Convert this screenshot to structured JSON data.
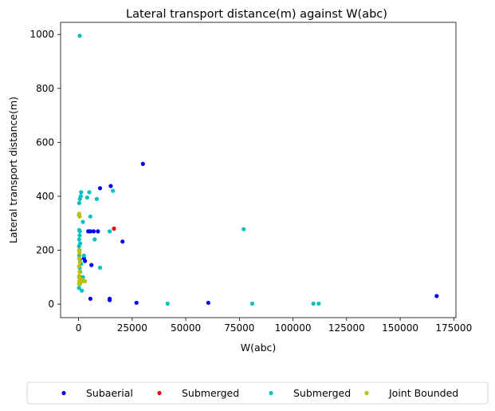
{
  "chart_data": {
    "type": "scatter",
    "title": "Lateral transport distance(m) against W(abc)",
    "xlabel": "W(abc)",
    "ylabel": "Lateral transport distance(m)",
    "xlim": [
      -8400,
      176000
    ],
    "ylim": [
      -50,
      1045
    ],
    "xticks": [
      0,
      25000,
      50000,
      75000,
      100000,
      125000,
      150000,
      175000
    ],
    "xtick_labels": [
      "0",
      "25000",
      "50000",
      "75000",
      "100000",
      "125000",
      "150000",
      "175000"
    ],
    "yticks": [
      0,
      200,
      400,
      600,
      800,
      1000
    ],
    "ytick_labels": [
      "0",
      "200",
      "400",
      "600",
      "800",
      "1000"
    ],
    "grid": false,
    "legend_position": "bottom-center, outside plot area, 4 columns",
    "series": [
      {
        "name": "Subaerial",
        "color": "#0000ff",
        "points": [
          [
            30000,
            520
          ],
          [
            15000,
            438
          ],
          [
            10000,
            430
          ],
          [
            2500,
            170
          ],
          [
            3000,
            160
          ],
          [
            4500,
            270
          ],
          [
            5500,
            270
          ],
          [
            7000,
            270
          ],
          [
            9000,
            270
          ],
          [
            20500,
            232
          ],
          [
            6000,
            145
          ],
          [
            2000,
            100
          ],
          [
            5500,
            20
          ],
          [
            14500,
            20
          ],
          [
            14500,
            15
          ],
          [
            27000,
            5
          ],
          [
            60500,
            5
          ],
          [
            167000,
            30
          ]
        ]
      },
      {
        "name": "Submerged",
        "color": "#ff0000",
        "points": [
          [
            16500,
            280
          ]
        ]
      },
      {
        "name": "Submerged",
        "color": "#00bfbf",
        "points": [
          [
            500,
            995
          ],
          [
            1200,
            415
          ],
          [
            1000,
            400
          ],
          [
            600,
            390
          ],
          [
            300,
            375
          ],
          [
            5000,
            415
          ],
          [
            4000,
            395
          ],
          [
            8500,
            390
          ],
          [
            16000,
            420
          ],
          [
            5500,
            325
          ],
          [
            200,
            330
          ],
          [
            2000,
            305
          ],
          [
            300,
            275
          ],
          [
            600,
            270
          ],
          [
            500,
            255
          ],
          [
            300,
            240
          ],
          [
            700,
            225
          ],
          [
            200,
            215
          ],
          [
            400,
            200
          ],
          [
            300,
            180
          ],
          [
            700,
            165
          ],
          [
            1200,
            150
          ],
          [
            500,
            135
          ],
          [
            800,
            120
          ],
          [
            300,
            100
          ],
          [
            1000,
            90
          ],
          [
            500,
            75
          ],
          [
            200,
            60
          ],
          [
            1500,
            50
          ],
          [
            2000,
            100
          ],
          [
            7500,
            240
          ],
          [
            10000,
            135
          ],
          [
            14500,
            270
          ],
          [
            2500,
            180
          ],
          [
            77000,
            278
          ],
          [
            41500,
            2
          ],
          [
            81000,
            2
          ],
          [
            109500,
            2
          ],
          [
            112000,
            2
          ]
        ]
      },
      {
        "name": "Joint Bounded",
        "color": "#bfbf00",
        "points": [
          [
            300,
            335
          ],
          [
            500,
            325
          ],
          [
            200,
            200
          ],
          [
            400,
            190
          ],
          [
            300,
            170
          ],
          [
            600,
            155
          ],
          [
            200,
            140
          ],
          [
            500,
            120
          ],
          [
            300,
            105
          ],
          [
            700,
            95
          ],
          [
            400,
            85
          ],
          [
            900,
            80
          ],
          [
            1500,
            90
          ],
          [
            2500,
            85
          ],
          [
            3000,
            85
          ],
          [
            200,
            75
          ]
        ]
      }
    ]
  }
}
